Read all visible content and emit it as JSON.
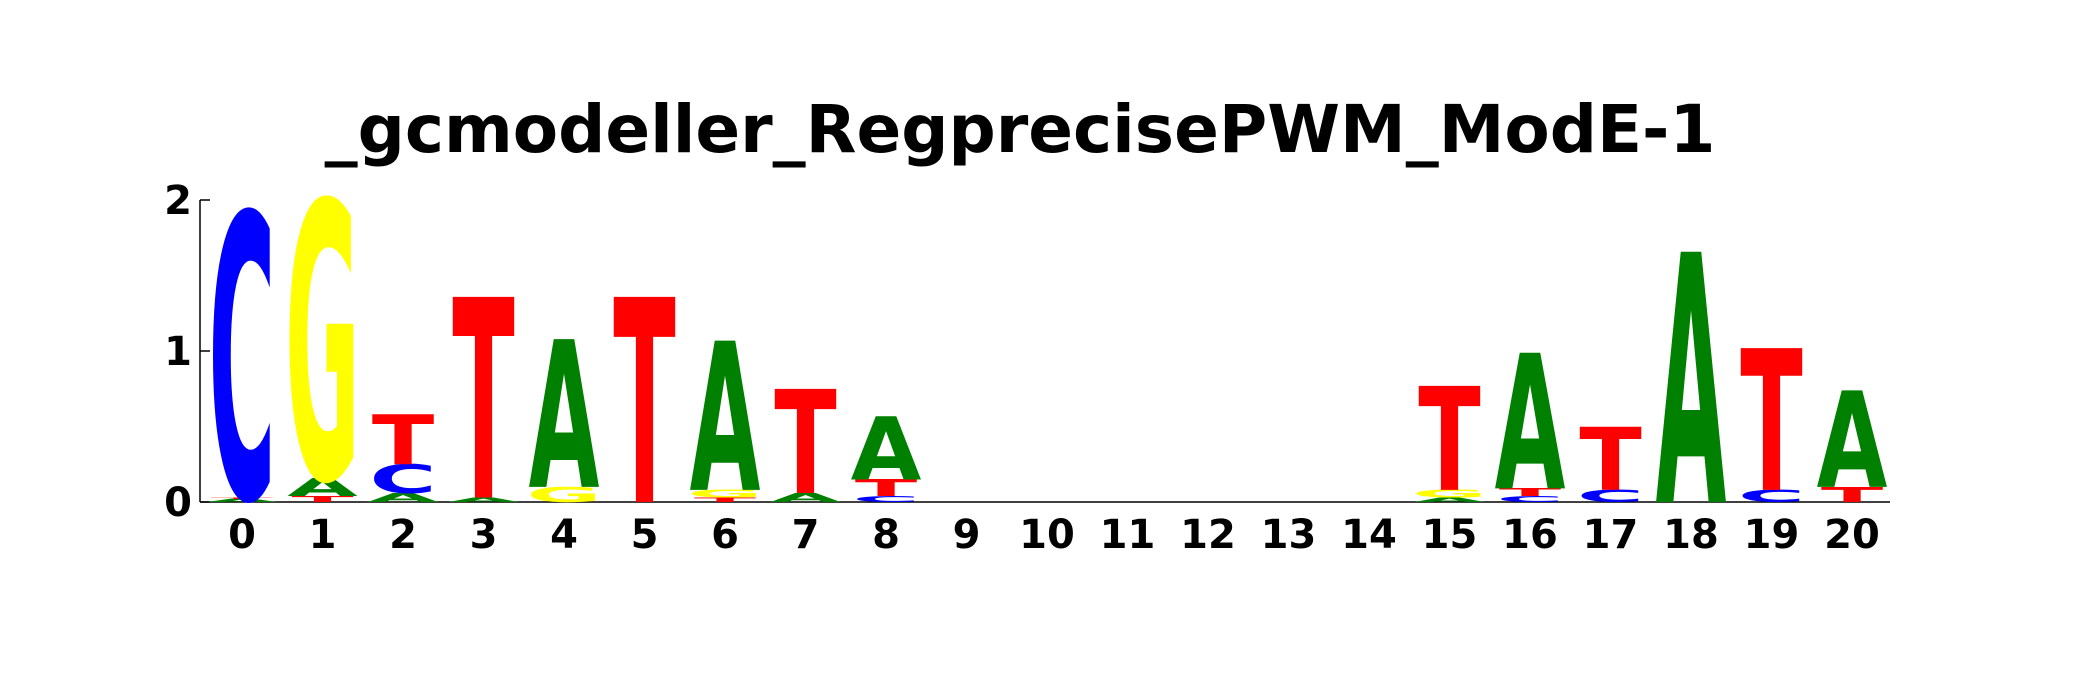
{
  "chart_data": {
    "type": "sequence-logo",
    "title": "_gcmodeller_RegprecisePWM_ModE-1",
    "xlabel": "",
    "ylabel": "",
    "ylim": [
      0,
      2
    ],
    "y_ticks": [
      "0",
      "1",
      "2"
    ],
    "categories": [
      "0",
      "1",
      "2",
      "3",
      "4",
      "5",
      "6",
      "7",
      "8",
      "9",
      "10",
      "11",
      "12",
      "13",
      "14",
      "15",
      "16",
      "17",
      "18",
      "19",
      "20"
    ],
    "colors": {
      "A": "#008000",
      "C": "#0000ff",
      "G": "#ffff00",
      "T": "#ff0000"
    },
    "positions": [
      {
        "stack": [
          {
            "base": "A",
            "bits": 0.02
          },
          {
            "base": "T",
            "bits": 0.01
          },
          {
            "base": "C",
            "bits": 1.89
          }
        ]
      },
      {
        "stack": [
          {
            "base": "T",
            "bits": 0.04
          },
          {
            "base": "A",
            "bits": 0.12
          },
          {
            "base": "G",
            "bits": 1.84
          }
        ]
      },
      {
        "stack": [
          {
            "base": "A",
            "bits": 0.06
          },
          {
            "base": "C",
            "bits": 0.19
          },
          {
            "base": "T",
            "bits": 0.33
          }
        ]
      },
      {
        "stack": [
          {
            "base": "A",
            "bits": 0.03
          },
          {
            "base": "T",
            "bits": 1.33
          }
        ]
      },
      {
        "stack": [
          {
            "base": "G",
            "bits": 0.1
          },
          {
            "base": "A",
            "bits": 0.98
          }
        ]
      },
      {
        "stack": [
          {
            "base": "T",
            "bits": 1.36
          }
        ]
      },
      {
        "stack": [
          {
            "base": "T",
            "bits": 0.03
          },
          {
            "base": "G",
            "bits": 0.05
          },
          {
            "base": "A",
            "bits": 0.99
          }
        ]
      },
      {
        "stack": [
          {
            "base": "A",
            "bits": 0.06
          },
          {
            "base": "T",
            "bits": 0.69
          }
        ]
      },
      {
        "stack": [
          {
            "base": "C",
            "bits": 0.04
          },
          {
            "base": "T",
            "bits": 0.11
          },
          {
            "base": "A",
            "bits": 0.42
          }
        ]
      },
      {
        "stack": []
      },
      {
        "stack": []
      },
      {
        "stack": []
      },
      {
        "stack": []
      },
      {
        "stack": []
      },
      {
        "stack": []
      },
      {
        "stack": [
          {
            "base": "A",
            "bits": 0.03
          },
          {
            "base": "G",
            "bits": 0.05
          },
          {
            "base": "T",
            "bits": 0.69
          }
        ]
      },
      {
        "stack": [
          {
            "base": "C",
            "bits": 0.04
          },
          {
            "base": "T",
            "bits": 0.05
          },
          {
            "base": "A",
            "bits": 0.9
          }
        ]
      },
      {
        "stack": [
          {
            "base": "C",
            "bits": 0.08
          },
          {
            "base": "T",
            "bits": 0.42
          }
        ]
      },
      {
        "stack": [
          {
            "base": "A",
            "bits": 1.66
          }
        ]
      },
      {
        "stack": [
          {
            "base": "C",
            "bits": 0.08
          },
          {
            "base": "T",
            "bits": 0.94
          }
        ]
      },
      {
        "stack": [
          {
            "base": "T",
            "bits": 0.1
          },
          {
            "base": "A",
            "bits": 0.64
          }
        ]
      }
    ]
  }
}
